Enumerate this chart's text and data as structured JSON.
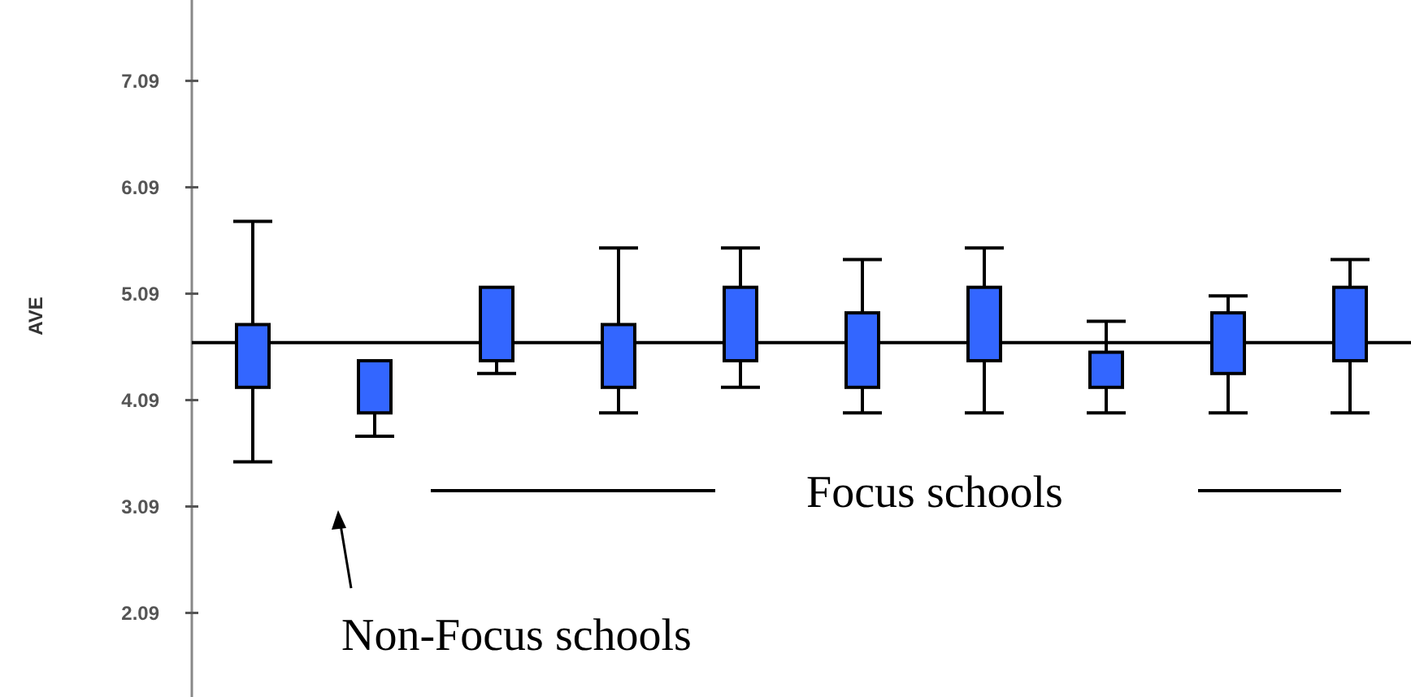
{
  "chart_data": {
    "type": "box",
    "ylabel": "AVE",
    "categories": [
      null,
      null,
      null,
      null,
      null,
      null,
      null,
      null,
      null,
      null
    ],
    "boxes": [
      {
        "low": 3.51,
        "q1": 4.21,
        "q3": 4.8,
        "high": 5.77
      },
      {
        "low": 3.75,
        "q1": 3.97,
        "q3": 4.46,
        "high": 4.46
      },
      {
        "low": 4.34,
        "q1": 4.46,
        "q3": 5.15,
        "high": 5.15
      },
      {
        "low": 3.97,
        "q1": 4.21,
        "q3": 4.8,
        "high": 5.52
      },
      {
        "low": 4.21,
        "q1": 4.46,
        "q3": 5.15,
        "high": 5.52
      },
      {
        "low": 3.97,
        "q1": 4.21,
        "q3": 4.91,
        "high": 5.41
      },
      {
        "low": 3.97,
        "q1": 4.46,
        "q3": 5.15,
        "high": 5.52
      },
      {
        "low": 3.97,
        "q1": 4.21,
        "q3": 4.54,
        "high": 4.83
      },
      {
        "low": 3.97,
        "q1": 4.34,
        "q3": 4.91,
        "high": 5.07
      },
      {
        "low": 3.97,
        "q1": 4.46,
        "q3": 5.15,
        "high": 5.41
      }
    ],
    "color": "#3366ff",
    "ylim": [
      1.3,
      7.85
    ],
    "yticks": [
      2.09,
      3.09,
      4.09,
      5.09,
      6.09,
      7.09
    ],
    "ref_lines": [
      {
        "axis": "y",
        "value": 4.63,
        "color": "#000000"
      }
    ],
    "annotations": [
      "Focus schools",
      "Non-Focus schools"
    ],
    "grid": false
  }
}
